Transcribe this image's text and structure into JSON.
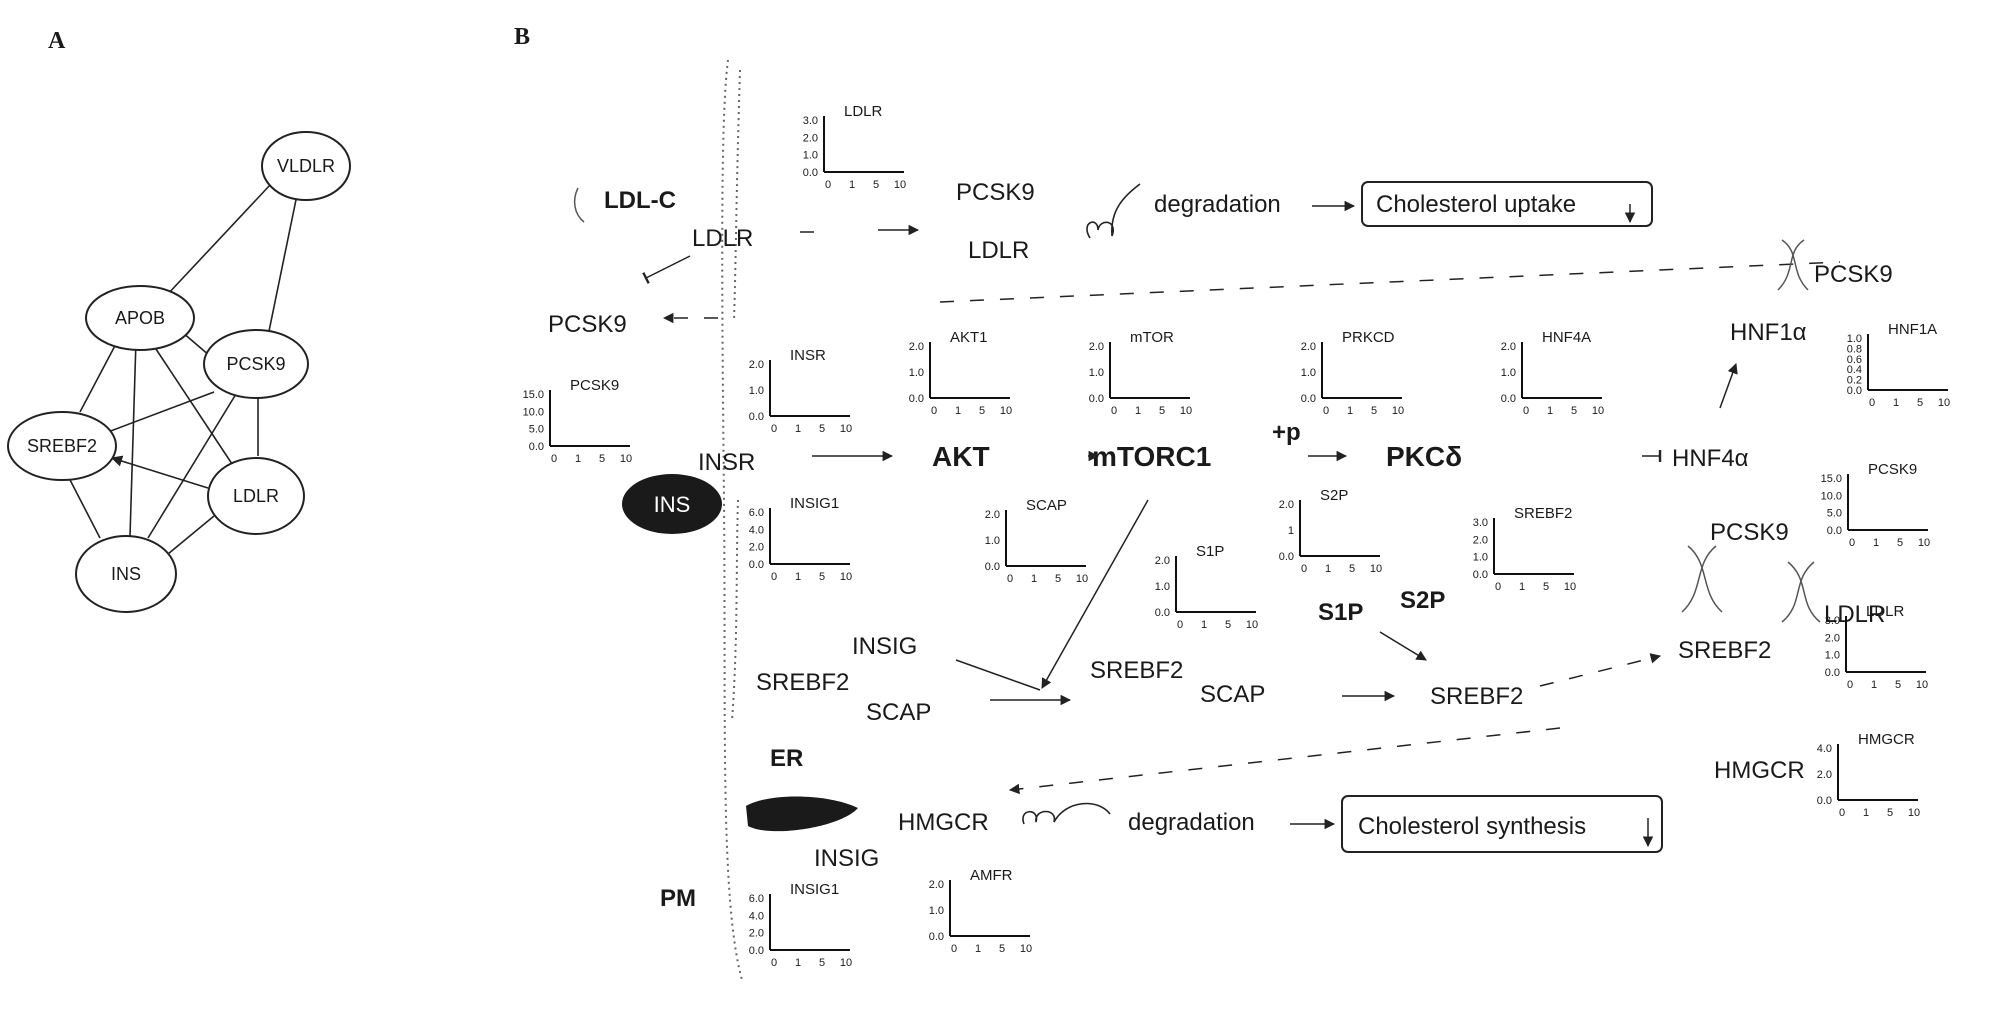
{
  "panels": {
    "a": "A",
    "b": "B"
  },
  "network": {
    "nodes": [
      "VLDLR",
      "APOB",
      "PCSK9",
      "SREBF2",
      "LDLR",
      "INS"
    ]
  },
  "diagram": {
    "ldlc": "LDL-C",
    "ldlr_membrane": "LDLR",
    "pcsk9_free": "PCSK9",
    "pcsk9_complex": "PCSK9",
    "ldlr_complex": "LDLR",
    "degradation_top": "degradation",
    "cholesterol_uptake": "Cholesterol uptake",
    "insr": "INSR",
    "ins": "INS",
    "akt": "AKT",
    "mtorc1": "mTORC1",
    "plus_p": "+p",
    "pkcd": "PKCδ",
    "hnf4a": "HNF4α",
    "hnf1a": "HNF1α",
    "pcsk9_gene_top": "PCSK9",
    "pcsk9_gene_mid": "PCSK9",
    "ldlr_gene": "LDLR",
    "srebf2_nuclear": "SREBF2",
    "hmgcr_gene": "HMGCR",
    "insig_er": "INSIG",
    "srebf2_er": "SREBF2",
    "scap_er": "SCAP",
    "er": "ER",
    "srebf2_golgi": "SREBF2",
    "scap_golgi": "SCAP",
    "s1p": "S1P",
    "s2p": "S2P",
    "srebf2_cleaved": "SREBF2",
    "amfr": "AMFR",
    "hmgcr": "HMGCR",
    "degradation_bottom": "degradation",
    "cholesterol_synthesis": "Cholesterol synthesis",
    "insig_bottom": "INSIG",
    "pm": "PM"
  },
  "chart_data": [
    {
      "type": "line",
      "title": "LDLR",
      "x_ticks": [
        "0",
        "1",
        "5",
        "10"
      ],
      "y_ticks": [
        "3.0",
        "2.0",
        "1.0",
        "0.0"
      ]
    },
    {
      "type": "line",
      "title": "PCSK9",
      "x_ticks": [
        "0",
        "1",
        "5",
        "10"
      ],
      "y_ticks": [
        "15.0",
        "10.0",
        "5.0",
        "0.0"
      ]
    },
    {
      "type": "line",
      "title": "INSR",
      "x_ticks": [
        "0",
        "1",
        "5",
        "10"
      ],
      "y_ticks": [
        "2.0",
        "1.0",
        "0.0"
      ]
    },
    {
      "type": "line",
      "title": "INSIG1",
      "x_ticks": [
        "0",
        "1",
        "5",
        "10"
      ],
      "y_ticks": [
        "6.0",
        "4.0",
        "2.0",
        "0.0"
      ]
    },
    {
      "type": "line",
      "title": "AKT1",
      "x_ticks": [
        "0",
        "1",
        "5",
        "10"
      ],
      "y_ticks": [
        "2.0",
        "1.0",
        "0.0"
      ]
    },
    {
      "type": "line",
      "title": "mTOR",
      "x_ticks": [
        "0",
        "1",
        "5",
        "10"
      ],
      "y_ticks": [
        "2.0",
        "1.0",
        "0.0"
      ]
    },
    {
      "type": "line",
      "title": "PRKCD",
      "x_ticks": [
        "0",
        "1",
        "5",
        "10"
      ],
      "y_ticks": [
        "2.0",
        "1.0",
        "0.0"
      ]
    },
    {
      "type": "line",
      "title": "HNF4A",
      "x_ticks": [
        "0",
        "1",
        "5",
        "10"
      ],
      "y_ticks": [
        "2.0",
        "1.0",
        "0.0"
      ]
    },
    {
      "type": "line",
      "title": "HNF1A",
      "x_ticks": [
        "0",
        "1",
        "5",
        "10"
      ],
      "y_ticks": [
        "1.0",
        "0.8",
        "0.6",
        "0.4",
        "0.2",
        "0.0"
      ]
    },
    {
      "type": "line",
      "title": "SCAP",
      "x_ticks": [
        "0",
        "1",
        "5",
        "10"
      ],
      "y_ticks": [
        "2.0",
        "1.0",
        "0.0"
      ]
    },
    {
      "type": "line",
      "title": "S1P",
      "x_ticks": [
        "0",
        "1",
        "5",
        "10"
      ],
      "y_ticks": [
        "2.0",
        "1.0",
        "0.0"
      ]
    },
    {
      "type": "line",
      "title": "S2P",
      "x_ticks": [
        "0",
        "1",
        "5",
        "10"
      ],
      "y_ticks": [
        "2.0",
        "1",
        "0.0"
      ]
    },
    {
      "type": "line",
      "title": "SREBF2",
      "x_ticks": [
        "0",
        "1",
        "5",
        "10"
      ],
      "y_ticks": [
        "3.0",
        "2.0",
        "1.0",
        "0.0"
      ]
    },
    {
      "type": "line",
      "title": "PCSK9",
      "x_ticks": [
        "0",
        "1",
        "5",
        "10"
      ],
      "y_ticks": [
        "15.0",
        "10.0",
        "5.0",
        "0.0"
      ]
    },
    {
      "type": "line",
      "title": "LDLR",
      "x_ticks": [
        "0",
        "1",
        "5",
        "10"
      ],
      "y_ticks": [
        "3.0",
        "2.0",
        "1.0",
        "0.0"
      ]
    },
    {
      "type": "line",
      "title": "HMGCR",
      "x_ticks": [
        "0",
        "1",
        "5",
        "10"
      ],
      "y_ticks": [
        "4.0",
        "2.0",
        "0.0"
      ]
    },
    {
      "type": "line",
      "title": "INSIG1",
      "x_ticks": [
        "0",
        "1",
        "5",
        "10"
      ],
      "y_ticks": [
        "6.0",
        "4.0",
        "2.0",
        "0.0"
      ]
    },
    {
      "type": "line",
      "title": "AMFR",
      "x_ticks": [
        "0",
        "1",
        "5",
        "10"
      ],
      "y_ticks": [
        "2.0",
        "1.0",
        "0.0"
      ]
    }
  ]
}
